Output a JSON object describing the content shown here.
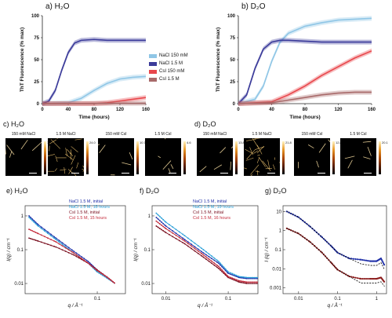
{
  "panel_titles": {
    "a": "a) H₂O",
    "b": "b) D₂O",
    "c": "c) H₂O",
    "d": "d) D₂O",
    "e": "e) H₂O",
    "f": "f) D₂O",
    "g": "g) D₂O"
  },
  "afm": {
    "c": [
      {
        "label": "150 mM NaCl",
        "cbar_max": "18.7"
      },
      {
        "label": "1.5 M NaCl",
        "cbar_max": "24.0"
      },
      {
        "label": "150 mM CsI",
        "cbar_max": "10.7"
      },
      {
        "label": "1.5 M CsI",
        "cbar_max": "4.6"
      }
    ],
    "d": [
      {
        "label": "150 mM NaCl",
        "cbar_max": "13.8"
      },
      {
        "label": "1.5 M NaCl",
        "cbar_max": "21.8"
      },
      {
        "label": "150 mM CsI",
        "cbar_max": "12.8"
      },
      {
        "label": "1.5 M CsI",
        "cbar_max": "20.1"
      }
    ]
  },
  "colors": {
    "nacl_150": "#8fc6e6",
    "nacl_15": "#3b3b9a",
    "csi_150": "#e8474c",
    "csi_15": "#a86a6a",
    "saxs_nacl_init": "#1f2fa8",
    "saxs_nacl_late": "#2a9fd8",
    "saxs_csi_init": "#7a1020",
    "saxs_csi_late": "#c42a3a"
  },
  "chart_data": [
    {
      "id": "a",
      "type": "line",
      "xlabel": "Time (hours)",
      "ylabel": "ThT Fluorescence (% max)",
      "xlim": [
        0,
        160
      ],
      "ylim": [
        0,
        100
      ],
      "xticks": [
        "0",
        "40",
        "80",
        "120",
        "160"
      ],
      "yticks": [
        "0",
        "25",
        "50",
        "75",
        "100"
      ],
      "legend_placement": "right",
      "series": [
        {
          "name": "NaCl 150 mM",
          "x": [
            0,
            40,
            60,
            80,
            100,
            120,
            140,
            160
          ],
          "y": [
            0,
            1,
            6,
            15,
            23,
            28,
            30,
            31
          ]
        },
        {
          "name": "NaCl 1.5 M",
          "x": [
            0,
            10,
            20,
            30,
            40,
            50,
            60,
            80,
            100,
            120,
            160
          ],
          "y": [
            0,
            3,
            15,
            38,
            58,
            69,
            72,
            73,
            72,
            72,
            72
          ]
        },
        {
          "name": "CsI 150 mM",
          "x": [
            0,
            80,
            100,
            120,
            140,
            160
          ],
          "y": [
            0,
            0,
            1,
            3,
            5,
            7
          ]
        },
        {
          "name": "CsI 1.5 M",
          "x": [
            0,
            160
          ],
          "y": [
            0,
            0.5
          ]
        }
      ]
    },
    {
      "id": "b",
      "type": "line",
      "xlabel": "Time (hours)",
      "ylabel": "ThT Fluorescence (% max)",
      "xlim": [
        0,
        160
      ],
      "ylim": [
        0,
        100
      ],
      "xticks": [
        "0",
        "40",
        "80",
        "120",
        "160"
      ],
      "yticks": [
        "0",
        "25",
        "50",
        "75",
        "100"
      ],
      "series": [
        {
          "name": "NaCl 150 mM",
          "x": [
            0,
            20,
            30,
            40,
            50,
            60,
            80,
            100,
            120,
            140,
            160
          ],
          "y": [
            0,
            5,
            20,
            48,
            70,
            80,
            88,
            92,
            95,
            96,
            97
          ]
        },
        {
          "name": "NaCl 1.5 M",
          "x": [
            0,
            10,
            20,
            30,
            40,
            50,
            60,
            80,
            100,
            120,
            160
          ],
          "y": [
            0,
            10,
            40,
            62,
            70,
            72,
            72,
            71,
            70,
            70,
            70
          ]
        },
        {
          "name": "CsI 150 mM",
          "x": [
            0,
            40,
            60,
            80,
            100,
            120,
            140,
            160
          ],
          "y": [
            0,
            2,
            10,
            20,
            32,
            42,
            52,
            60
          ]
        },
        {
          "name": "CsI 1.5 M",
          "x": [
            0,
            40,
            60,
            80,
            100,
            120,
            140,
            160
          ],
          "y": [
            0,
            1,
            4,
            7,
            10,
            12,
            13,
            13
          ]
        }
      ]
    },
    {
      "id": "e",
      "type": "scatter",
      "xlabel": "q / Å⁻¹",
      "ylabel": "I(q) / cm⁻¹",
      "xscale": "log",
      "yscale": "log",
      "xlim": [
        0.006,
        0.3
      ],
      "ylim": [
        0.005,
        2
      ],
      "xticks": [
        "0.1"
      ],
      "yticks": [
        "1",
        "0.1",
        "0.01"
      ],
      "series": [
        {
          "name": "NaCl 1.5 M, initial",
          "x": [
            0.007,
            0.01,
            0.02,
            0.04,
            0.07,
            0.1,
            0.15,
            0.2
          ],
          "y": [
            1.0,
            0.55,
            0.22,
            0.09,
            0.045,
            0.025,
            0.015,
            0.01
          ]
        },
        {
          "name": "NaCl 1.5 M, 18 hours",
          "x": [
            0.007,
            0.01,
            0.02,
            0.04,
            0.07,
            0.1,
            0.15,
            0.2
          ],
          "y": [
            0.9,
            0.5,
            0.2,
            0.08,
            0.04,
            0.022,
            0.014,
            0.01
          ]
        },
        {
          "name": "CsI 1.5 M, initial",
          "x": [
            0.007,
            0.01,
            0.02,
            0.04,
            0.07,
            0.1,
            0.15,
            0.2
          ],
          "y": [
            0.22,
            0.18,
            0.12,
            0.07,
            0.04,
            0.025,
            0.015,
            0.01
          ]
        },
        {
          "name": "CsI 1.5 M, 15 hours",
          "x": [
            0.007,
            0.01,
            0.02,
            0.04,
            0.07,
            0.1,
            0.15,
            0.2
          ],
          "y": [
            0.4,
            0.3,
            0.17,
            0.08,
            0.04,
            0.024,
            0.015,
            0.01
          ]
        }
      ]
    },
    {
      "id": "f",
      "type": "scatter",
      "xlabel": "q / Å⁻¹",
      "ylabel": "I(q) / cm⁻¹",
      "xscale": "log",
      "yscale": "log",
      "xlim": [
        0.006,
        0.3
      ],
      "ylim": [
        0.005,
        2
      ],
      "xticks": [
        "0.01",
        "0.1"
      ],
      "yticks": [
        "1",
        "0.1",
        "0.01"
      ],
      "series": [
        {
          "name": "NaCl 1.5 M, initial",
          "x": [
            0.007,
            0.01,
            0.02,
            0.04,
            0.07,
            0.1,
            0.15,
            0.2,
            0.3
          ],
          "y": [
            0.9,
            0.5,
            0.2,
            0.08,
            0.04,
            0.02,
            0.015,
            0.014,
            0.014
          ]
        },
        {
          "name": "NaCl 1.5 M, 19 hours",
          "x": [
            0.007,
            0.01,
            0.02,
            0.04,
            0.07,
            0.1,
            0.15,
            0.2,
            0.3
          ],
          "y": [
            1.2,
            0.65,
            0.26,
            0.1,
            0.045,
            0.022,
            0.016,
            0.015,
            0.015
          ]
        },
        {
          "name": "CsI 1.5 M, initial",
          "x": [
            0.007,
            0.01,
            0.02,
            0.04,
            0.07,
            0.1,
            0.15,
            0.2,
            0.3
          ],
          "y": [
            0.5,
            0.32,
            0.15,
            0.06,
            0.028,
            0.015,
            0.011,
            0.01,
            0.01
          ]
        },
        {
          "name": "CsI 1.5 M, 16 hours",
          "x": [
            0.007,
            0.01,
            0.02,
            0.04,
            0.07,
            0.1,
            0.15,
            0.2,
            0.3
          ],
          "y": [
            0.7,
            0.42,
            0.18,
            0.07,
            0.032,
            0.016,
            0.012,
            0.011,
            0.011
          ]
        }
      ]
    },
    {
      "id": "g",
      "type": "scatter",
      "xlabel": "q / Å⁻¹",
      "ylabel": "I (q) / cm⁻¹",
      "xscale": "log",
      "yscale": "log",
      "xlim": [
        0.004,
        1.8
      ],
      "ylim": [
        0.0005,
        20
      ],
      "xticks": [
        "0.01",
        "0.1",
        "1"
      ],
      "yticks": [
        "10",
        "1",
        "0.1",
        "0.01",
        "0.001"
      ],
      "series": [
        {
          "x": [
            0.005,
            0.01,
            0.02,
            0.04,
            0.07,
            0.1,
            0.2,
            0.4,
            0.7,
            1.0,
            1.3,
            1.6
          ],
          "y": [
            10,
            5,
            1.6,
            0.45,
            0.15,
            0.07,
            0.035,
            0.03,
            0.025,
            0.025,
            0.035,
            0.015
          ]
        },
        {
          "x": [
            0.005,
            0.01,
            0.02,
            0.04,
            0.07,
            0.1,
            0.2,
            0.4,
            0.7,
            1.0,
            1.3,
            1.6
          ],
          "y": [
            1.3,
            0.7,
            0.25,
            0.07,
            0.02,
            0.009,
            0.004,
            0.003,
            0.003,
            0.003,
            0.0035,
            0.002
          ]
        }
      ]
    }
  ]
}
